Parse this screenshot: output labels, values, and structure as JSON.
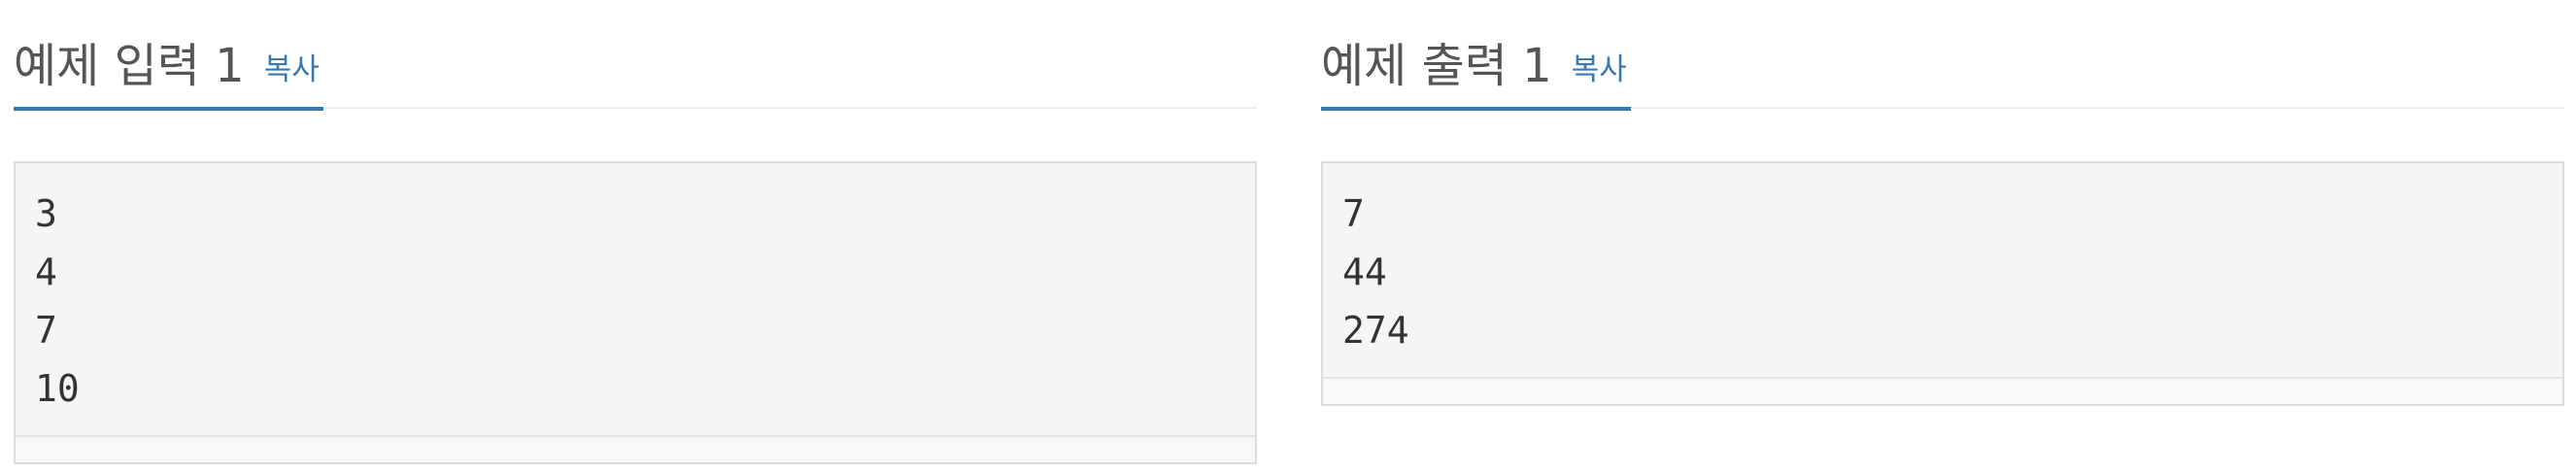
{
  "input": {
    "title": "예제 입력 1",
    "copy_label": "복사",
    "lines": "3\n4\n7\n10"
  },
  "output": {
    "title": "예제 출력 1",
    "copy_label": "복사",
    "lines": "7\n44\n274"
  },
  "colors": {
    "accent": "#337ab7",
    "title_text": "#555555",
    "sample_bg": "#f5f5f7",
    "sample_border": "#dcdcdc"
  }
}
